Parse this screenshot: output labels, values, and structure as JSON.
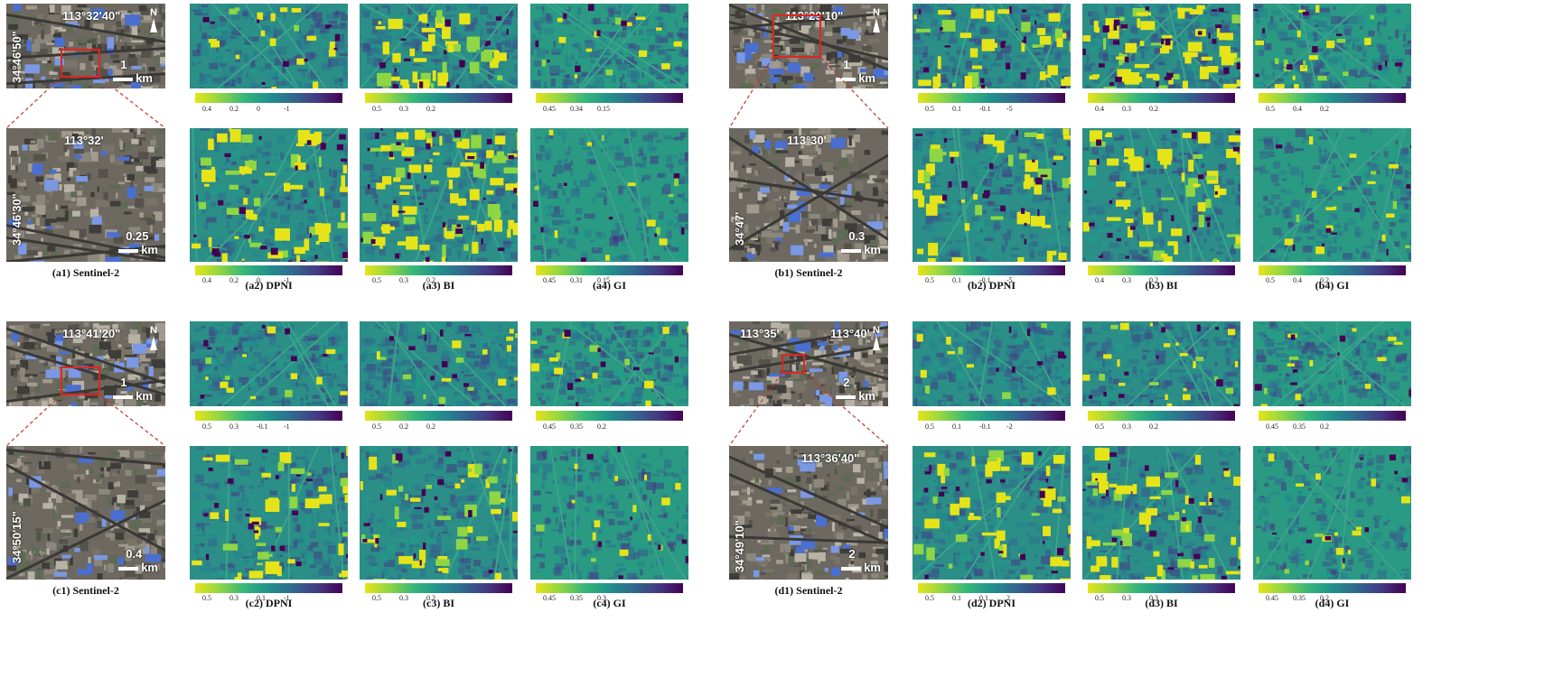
{
  "colors": {
    "viridis_yellow": "#e6e419",
    "viridis_teal": "#21918c",
    "viridis_purple": "#440154",
    "box_red": "#e0261f"
  },
  "north_label": "N",
  "panels": [
    {
      "id": "a",
      "top_coord_x": "113°32'40\"",
      "top_coord_y": "34°46'50\"",
      "top_scale": "1",
      "zoom_coord_x": "113°32'",
      "zoom_coord_y": "34°46'30\"",
      "zoom_scale": "0.25",
      "unit": "km",
      "captions": [
        "(a1) Sentinel-2",
        "(a2) DPNI",
        "(a3) BI",
        "(a4) GI"
      ],
      "ticks_top": [
        [
          "0.4",
          "0.2",
          "0",
          "-1"
        ],
        [
          "0.5",
          "0.3",
          "0.2"
        ],
        [
          "0.45",
          "0.34",
          "0.15"
        ]
      ],
      "ticks_bottom": [
        [
          "0.4",
          "0.2",
          "0",
          "-1"
        ],
        [
          "0.5",
          "0.3",
          "0.2"
        ],
        [
          "0.45",
          "0.31",
          "0.15"
        ]
      ]
    },
    {
      "id": "b",
      "top_coord_x": "113°29'10\"",
      "top_coord_y": "",
      "top_scale": "1",
      "zoom_coord_x": "113°30'",
      "zoom_coord_y": "34°47'",
      "zoom_scale": "0.3",
      "unit": "km",
      "captions": [
        "(b1) Sentinel-2",
        "(b2) DPNI",
        "(b3) BI",
        "(b4) GI"
      ],
      "ticks_top": [
        [
          "0.5",
          "0.1",
          "-0.1",
          "-5"
        ],
        [
          "0.4",
          "0.3",
          "0.2"
        ],
        [
          "0.5",
          "0.4",
          "0.2"
        ]
      ],
      "ticks_bottom": [
        [
          "0.5",
          "0.1",
          "-0.1",
          "-5"
        ],
        [
          "0.4",
          "0.3",
          "0.2"
        ],
        [
          "0.5",
          "0.4",
          "0.2"
        ]
      ]
    },
    {
      "id": "c",
      "top_coord_x": "113°41'20\"",
      "top_coord_y": "",
      "top_scale": "1",
      "zoom_coord_x": "",
      "zoom_coord_y": "34°50'15\"",
      "zoom_scale": "0.4",
      "unit": "km",
      "captions": [
        "(c1) Sentinel-2",
        "(c2) DPNI",
        "(c3) BI",
        "(c4) GI"
      ],
      "ticks_top": [
        [
          "0.5",
          "0.3",
          "-0.1",
          "-1"
        ],
        [
          "0.5",
          "0.2",
          "0.2"
        ],
        [
          "0.45",
          "0.35",
          "0.2"
        ]
      ],
      "ticks_bottom": [
        [
          "0.5",
          "0.3",
          "0.1",
          "-1"
        ],
        [
          "0.5",
          "0.3",
          "0.2"
        ],
        [
          "0.45",
          "0.35",
          "0.3"
        ]
      ]
    },
    {
      "id": "d",
      "top_coord_x": "113°35'",
      "top_coord_x2": "113°40'",
      "top_coord_y": "",
      "top_scale": "2",
      "zoom_coord_x": "113°36'40\"",
      "zoom_coord_y": "34°49'10\"",
      "zoom_scale": "2",
      "unit": "km",
      "captions": [
        "(d1) Sentinel-2",
        "(d2) DPNI",
        "(d3) BI",
        "(d4) GI"
      ],
      "ticks_top": [
        [
          "0.5",
          "0.1",
          "-0.1",
          "-2"
        ],
        [
          "0.5",
          "0.3",
          "0.2"
        ],
        [
          "0.45",
          "0.35",
          "0.2"
        ]
      ],
      "ticks_bottom": [
        [
          "0.5",
          "0.1",
          "0.1",
          "2"
        ],
        [
          "0.5",
          "0.3",
          "0.3"
        ],
        [
          "0.45",
          "0.35",
          "0.2"
        ]
      ]
    }
  ]
}
